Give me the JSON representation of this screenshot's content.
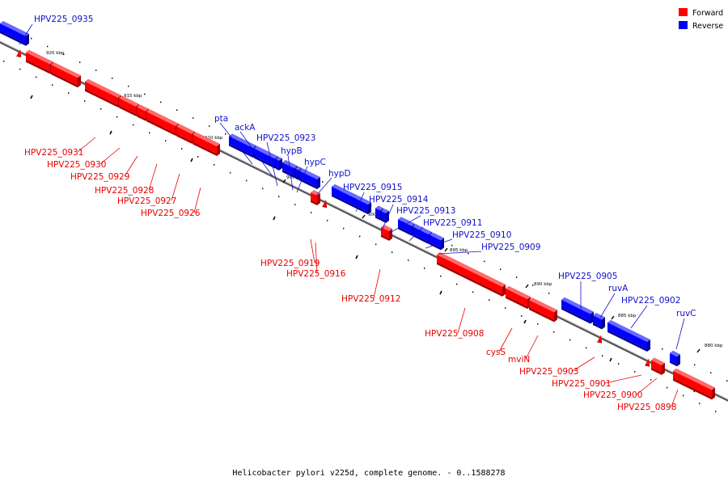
{
  "caption": "Helicobacter pylori v225d, complete genome. - 0..1588278",
  "legend": [
    {
      "label": "Forward",
      "color": "#ff0000"
    },
    {
      "label": "Reverse",
      "color": "#0000ff"
    }
  ],
  "colors": {
    "forward": "#ff0000",
    "forward_dark": "#a80000",
    "forward_light": "#ff6a6a",
    "reverse": "#0000ff",
    "reverse_dark": "#00009a",
    "reverse_light": "#6a6aff",
    "forward_text": "#e80000",
    "reverse_text": "#1010cc"
  },
  "ticks": [
    "920 kbp",
    "915 kbp",
    "910 kbp",
    "905 kbp",
    "900 kbp",
    "895 kbp",
    "890 kbp",
    "885 kbp",
    "880 kbp"
  ],
  "reverse_labels": [
    "HPV225_0935",
    "pta",
    "ackA",
    "HPV225_0923",
    "hypB",
    "hypC",
    "hypD",
    "HPV225_0915",
    "HPV225_0914",
    "HPV225_0913",
    "HPV225_0911",
    "HPV225_0910",
    "HPV225_0909",
    "HPV225_0905",
    "ruvA",
    "HPV225_0902",
    "ruvC"
  ],
  "forward_labels": [
    "HPV225_0931",
    "HPV225_0930",
    "HPV225_0929",
    "HPV225_0928",
    "HPV225_0927",
    "HPV225_0926",
    "HPV225_0919",
    "HPV225_0916",
    "HPV225_0912",
    "HPV225_0908",
    "cysS",
    "mviN",
    "HPV225_0903",
    "HPV225_0901",
    "HPV225_0900",
    "HPV225_0898"
  ]
}
